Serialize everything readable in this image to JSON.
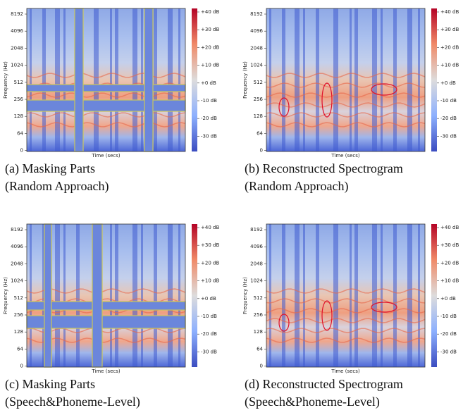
{
  "panels": [
    {
      "caption": [
        "(a) Masking Parts",
        "(Random Approach)"
      ],
      "y_label": "Frequency (Hz)",
      "x_label": "Time (secs)",
      "y_ticks": [
        "8192",
        "4096",
        "2048",
        "1024",
        "512",
        "256",
        "128",
        "64",
        "0"
      ],
      "colorbar_ticks": [
        "+40 dB",
        "+30 dB",
        "+20 dB",
        "+10 dB",
        "+0 dB",
        "-10 dB",
        "-20 dB",
        "-30 dB"
      ]
    },
    {
      "caption": [
        "(b) Reconstructed Spectrogram",
        "(Random Approach)"
      ],
      "y_label": "Frequency (Hz)",
      "x_label": "Time (secs)",
      "y_ticks": [
        "8192",
        "4096",
        "2048",
        "1024",
        "512",
        "256",
        "128",
        "64",
        "0"
      ],
      "colorbar_ticks": [
        "+40 dB",
        "+30 dB",
        "+20 dB",
        "+10 dB",
        "+0 dB",
        "-10 dB",
        "-20 dB",
        "-30 dB"
      ]
    },
    {
      "caption": [
        "(c) Masking Parts",
        "(Speech&Phoneme-Level)"
      ],
      "y_label": "Frequency (Hz)",
      "x_label": "Time (secs)",
      "y_ticks": [
        "8192",
        "4096",
        "2048",
        "1024",
        "512",
        "256",
        "128",
        "64",
        "0"
      ],
      "colorbar_ticks": [
        "+40 dB",
        "+30 dB",
        "+20 dB",
        "+10 dB",
        "+0 dB",
        "-10 dB",
        "-20 dB",
        "-30 dB"
      ]
    },
    {
      "caption": [
        "(d) Reconstructed Spectrogram",
        "(Speech&Phoneme-Level)"
      ],
      "y_label": "Frequency (Hz)",
      "x_label": "Time (secs)",
      "y_ticks": [
        "8192",
        "4096",
        "2048",
        "1024",
        "512",
        "256",
        "128",
        "64",
        "0"
      ],
      "colorbar_ticks": [
        "+40 dB",
        "+30 dB",
        "+20 dB",
        "+10 dB",
        "+0 dB",
        "-10 dB",
        "-20 dB",
        "-30 dB"
      ]
    }
  ]
}
